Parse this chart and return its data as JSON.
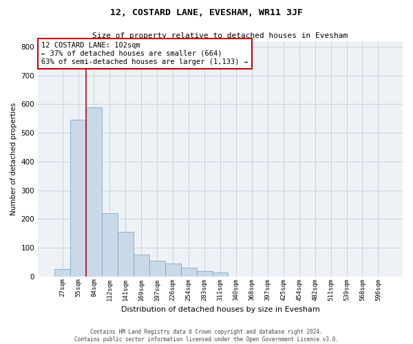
{
  "title": "12, COSTARD LANE, EVESHAM, WR11 3JF",
  "subtitle": "Size of property relative to detached houses in Evesham",
  "xlabel": "Distribution of detached houses by size in Evesham",
  "ylabel": "Number of detached properties",
  "footer_line1": "Contains HM Land Registry data © Crown copyright and database right 2024.",
  "footer_line2": "Contains public sector information licensed under the Open Government Licence v3.0.",
  "categories": [
    "27sqm",
    "55sqm",
    "84sqm",
    "112sqm",
    "141sqm",
    "169sqm",
    "197sqm",
    "226sqm",
    "254sqm",
    "283sqm",
    "311sqm",
    "340sqm",
    "368sqm",
    "397sqm",
    "425sqm",
    "454sqm",
    "482sqm",
    "511sqm",
    "539sqm",
    "568sqm",
    "596sqm"
  ],
  "values": [
    25,
    545,
    590,
    220,
    155,
    75,
    55,
    45,
    30,
    18,
    13,
    0,
    0,
    0,
    0,
    0,
    0,
    0,
    0,
    0,
    0
  ],
  "bar_color": "#c9d9e8",
  "bar_edge_color": "#7aaac8",
  "grid_color": "#c8d0dc",
  "background_color": "#eef2f7",
  "vline_color": "#cc0000",
  "vline_x": 1.5,
  "annotation_text": "12 COSTARD LANE: 102sqm\n← 37% of detached houses are smaller (664)\n63% of semi-detached houses are larger (1,133) →",
  "annotation_box_color": "#ffffff",
  "annotation_box_edge": "#cc0000",
  "ylim": [
    0,
    820
  ],
  "yticks": [
    0,
    100,
    200,
    300,
    400,
    500,
    600,
    700,
    800
  ]
}
